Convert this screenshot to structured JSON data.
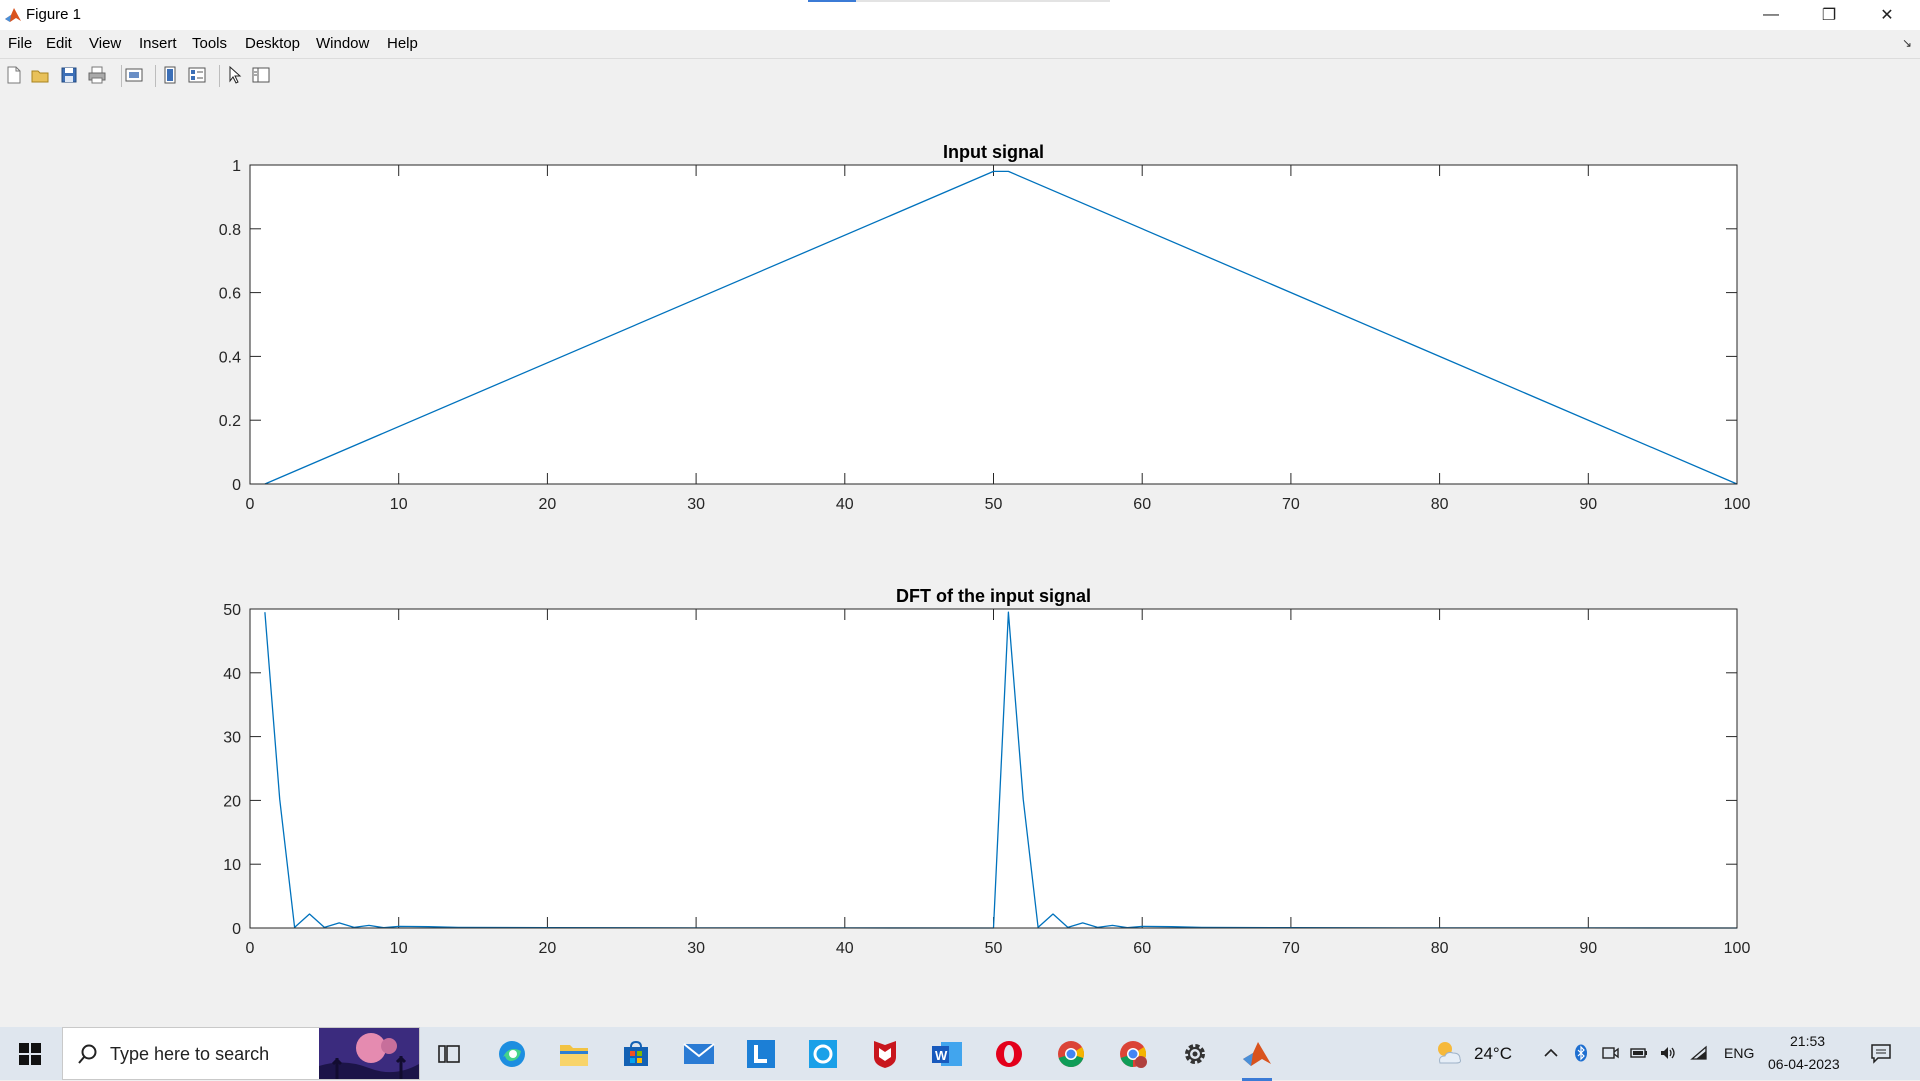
{
  "window": {
    "title": "Figure 1",
    "controls": {
      "minimize": "—",
      "restore": "❐",
      "close": "✕"
    },
    "strip_fill_fraction": 0.16
  },
  "menu": [
    "File",
    "Edit",
    "View",
    "Insert",
    "Tools",
    "Desktop",
    "Window",
    "Help"
  ],
  "menu_dock_glyph": "↘",
  "toolbar": {
    "icons": [
      "new-figure-icon",
      "open-file-icon",
      "save-icon",
      "print-icon",
      "link-plot-icon",
      "hide-plot-tools-icon",
      "show-plot-tools-icon",
      "edit-plot-icon",
      "plot-browser-icon"
    ]
  },
  "chart_data": [
    {
      "type": "line",
      "title": "Input signal",
      "xlabel": "",
      "ylabel": "",
      "xlim": [
        0,
        100
      ],
      "ylim": [
        0,
        1
      ],
      "xticks": [
        "0",
        "10",
        "20",
        "30",
        "40",
        "50",
        "60",
        "70",
        "80",
        "90",
        "100"
      ],
      "yticks": [
        "0",
        "0.2",
        "0.4",
        "0.6",
        "0.8",
        "1"
      ],
      "grid": false,
      "color": "#0072bd",
      "series": [
        {
          "x": [
            1,
            50,
            51,
            100
          ],
          "y": [
            0,
            0.98,
            0.98,
            0
          ]
        }
      ]
    },
    {
      "type": "line",
      "title": "DFT of the input signal",
      "xlabel": "",
      "ylabel": "",
      "xlim": [
        0,
        100
      ],
      "ylim": [
        0,
        50
      ],
      "xticks": [
        "0",
        "10",
        "20",
        "30",
        "40",
        "50",
        "60",
        "70",
        "80",
        "90",
        "100"
      ],
      "yticks": [
        "0",
        "10",
        "20",
        "30",
        "40",
        "50"
      ],
      "grid": false,
      "color": "#0072bd",
      "series": [
        {
          "x": [
            1,
            2,
            3,
            4,
            5,
            6,
            7,
            8,
            9,
            10,
            12,
            14,
            20,
            30,
            40,
            50,
            51,
            52,
            53,
            54,
            55,
            56,
            57,
            58,
            59,
            60,
            62,
            64,
            70,
            80,
            90,
            100
          ],
          "y": [
            49.5,
            20.2,
            0.1,
            2.2,
            0.1,
            0.8,
            0.1,
            0.4,
            0.05,
            0.25,
            0.2,
            0.1,
            0.05,
            0.02,
            0.02,
            0.0,
            49.5,
            20.2,
            0.1,
            2.2,
            0.1,
            0.8,
            0.1,
            0.4,
            0.05,
            0.25,
            0.2,
            0.1,
            0.05,
            0.02,
            0.02,
            0.0
          ]
        }
      ]
    }
  ],
  "taskbar": {
    "search_placeholder": "Type here to search",
    "apps": [
      "task-view-icon",
      "edge-icon",
      "file-explorer-icon",
      "store-icon",
      "mail-icon",
      "l-app-icon",
      "blue-app-icon",
      "mcafee-icon",
      "word-icon",
      "opera-icon",
      "chrome-icon",
      "chrome-profile-icon",
      "settings-icon",
      "matlab-icon"
    ],
    "weather": "24°C",
    "language": "ENG",
    "time": "21:53",
    "date": "06-04-2023"
  }
}
